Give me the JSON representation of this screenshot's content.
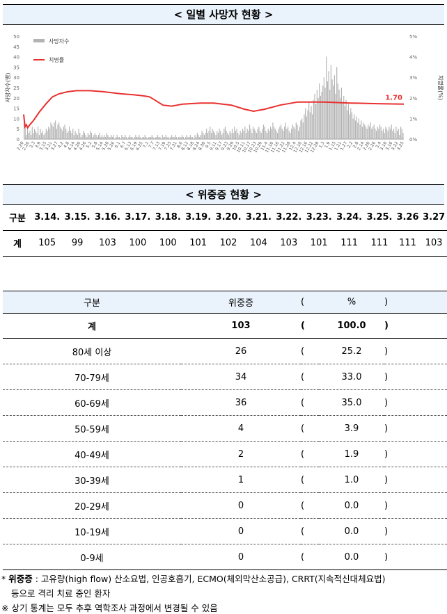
{
  "chart_section": {
    "title": "< 일별 사망자 현황 >"
  },
  "chart_data": {
    "type": "bar",
    "series": [
      {
        "name": "사망자수",
        "kind": "bar",
        "values": [
          10,
          6,
          2,
          5,
          3,
          4,
          2,
          6,
          3,
          5,
          4,
          3,
          6,
          2,
          5,
          3,
          4,
          2,
          3,
          5,
          4,
          6,
          5,
          8,
          7,
          6,
          8,
          9,
          5,
          7,
          8,
          6,
          5,
          4,
          6,
          7,
          5,
          3,
          4,
          6,
          4,
          3,
          5,
          2,
          4,
          3,
          2,
          5,
          3,
          1,
          2,
          4,
          3,
          2,
          1,
          3,
          2,
          4,
          3,
          1,
          2,
          3,
          2,
          1,
          2,
          3,
          1,
          2,
          1,
          2,
          1,
          3,
          2,
          1,
          1,
          2,
          1,
          2,
          0,
          1,
          2,
          1,
          1,
          0,
          2,
          1,
          1,
          2,
          1,
          0,
          1,
          2,
          1,
          1,
          0,
          1,
          2,
          1,
          1,
          2,
          1,
          0,
          1,
          1,
          2,
          1,
          0,
          1,
          1,
          1,
          2,
          1,
          0,
          1,
          1,
          2,
          1,
          1,
          0,
          2,
          1,
          1,
          2,
          1,
          1,
          0,
          1,
          2,
          1,
          1,
          2,
          1,
          0,
          1,
          1,
          1,
          2,
          1,
          0,
          1,
          2,
          1,
          1,
          2,
          1,
          1,
          0,
          2,
          1,
          3,
          2,
          1,
          2,
          4,
          3,
          2,
          3,
          5,
          3,
          4,
          6,
          3,
          5,
          4,
          3,
          2,
          4,
          3,
          5,
          4,
          2,
          3,
          5,
          6,
          4,
          3,
          2,
          4,
          3,
          5,
          3,
          6,
          4,
          5,
          3,
          2,
          4,
          3,
          5,
          4,
          6,
          3,
          5,
          4,
          7,
          5,
          3,
          6,
          5,
          4,
          3,
          5,
          6,
          4,
          3,
          5,
          7,
          6,
          4,
          3,
          5,
          4,
          6,
          5,
          8,
          6,
          5,
          4,
          3,
          5,
          6,
          7,
          5,
          4,
          6,
          8,
          5,
          6,
          4,
          3,
          5,
          7,
          6,
          5,
          8,
          7,
          4,
          6,
          9,
          10,
          8,
          12,
          15,
          11,
          14,
          18,
          13,
          16,
          12,
          19,
          22,
          17,
          24,
          20,
          27,
          21,
          23,
          26,
          30,
          25,
          40,
          28,
          33,
          24,
          36,
          29,
          26,
          31,
          22,
          35,
          27,
          24,
          20,
          25,
          18,
          21,
          16,
          19,
          14,
          17,
          12,
          15,
          13,
          10,
          12,
          9,
          11,
          8,
          10,
          7,
          9,
          6,
          8,
          7,
          6,
          5,
          7,
          6,
          8,
          5,
          6,
          7,
          5,
          4,
          6,
          5,
          7,
          6,
          4,
          5,
          3,
          6,
          5,
          4,
          6,
          5,
          7,
          4,
          5,
          3,
          6,
          4,
          5,
          2,
          6,
          5,
          3
        ]
      },
      {
        "name": "치명률",
        "kind": "line",
        "axis": "right",
        "points": [
          [
            0,
            1.2
          ],
          [
            3,
            0.6
          ],
          [
            6,
            0.7
          ],
          [
            9,
            0.55
          ],
          [
            14,
            0.7
          ],
          [
            22,
            0.9
          ],
          [
            35,
            1.3
          ],
          [
            50,
            1.7
          ],
          [
            65,
            2.05
          ],
          [
            80,
            2.2
          ],
          [
            100,
            2.3
          ],
          [
            120,
            2.35
          ],
          [
            150,
            2.35
          ],
          [
            180,
            2.3
          ],
          [
            220,
            2.2
          ],
          [
            250,
            2.15
          ],
          [
            270,
            2.1
          ],
          [
            285,
            2.05
          ],
          [
            300,
            1.85
          ],
          [
            315,
            1.65
          ],
          [
            335,
            1.6
          ],
          [
            360,
            1.7
          ],
          [
            400,
            1.75
          ],
          [
            430,
            1.75
          ],
          [
            470,
            1.65
          ],
          [
            500,
            1.45
          ],
          [
            520,
            1.35
          ],
          [
            545,
            1.45
          ],
          [
            580,
            1.65
          ],
          [
            620,
            1.8
          ],
          [
            680,
            1.8
          ],
          [
            740,
            1.75
          ],
          [
            800,
            1.72
          ],
          [
            860,
            1.7
          ]
        ]
      }
    ],
    "x_ticks": [
      "2.20",
      "2.26",
      "3.3",
      "3.9",
      "3.15",
      "3.21",
      "3.27",
      "4.2",
      "4.8",
      "4.14",
      "4.20",
      "4.26",
      "5.2",
      "5.8",
      "5.14",
      "5.20",
      "5.26",
      "6.1",
      "6.7",
      "6.13",
      "6.19",
      "6.25",
      "7.1",
      "7.7",
      "7.13",
      "7.19",
      "7.25",
      "7.31",
      "8.6",
      "8.12",
      "8.18",
      "8.24",
      "8.30",
      "9.5",
      "9.11",
      "9.17",
      "9.23",
      "9.29",
      "10.5",
      "10.11",
      "10.17",
      "10.23",
      "10.29",
      "11.4",
      "11.10",
      "11.16",
      "11.22",
      "11.28",
      "12.4",
      "12.10",
      "12.16",
      "12.22",
      "12.28",
      "1.3",
      "1.9",
      "1.15",
      "1.21",
      "1.27",
      "2.2",
      "2.8",
      "2.14",
      "2.20",
      "2.26",
      "3.4",
      "3.10",
      "3.16",
      "3.22",
      "3.25"
    ],
    "y_left_ticks": [
      "0",
      "5",
      "10",
      "15",
      "20",
      "25",
      "30",
      "35",
      "40",
      "45",
      "50"
    ],
    "y_right_ticks": [
      "0%",
      "1%",
      "2%",
      "3%",
      "4%",
      "5%"
    ],
    "ylim_left": [
      0,
      50
    ],
    "ylim_right": [
      0,
      5
    ],
    "y_left_label": "사망자수(명)",
    "y_right_label": "치명률(%)",
    "end_label": "1.70",
    "legend": [
      {
        "name": "사망자수",
        "color": "#b3b3b3"
      },
      {
        "name": "치명률",
        "color": "#e8302e"
      }
    ],
    "legend_position": "top-left"
  },
  "daily_section": {
    "title": "< 위중증 현황 >",
    "row_header": "구분",
    "row_label": "계",
    "dates": [
      "3.14.",
      "3.15.",
      "3.16.",
      "3.17.",
      "3.18.",
      "3.19.",
      "3.20.",
      "3.21.",
      "3.22.",
      "3.23.",
      "3.24.",
      "3.25.",
      "3.26",
      "3.27"
    ],
    "values": [
      "105",
      "99",
      "103",
      "100",
      "100",
      "101",
      "102",
      "104",
      "103",
      "101",
      "111",
      "111",
      "111",
      "103"
    ]
  },
  "age_table": {
    "headers": {
      "group": "구분",
      "count": "위중증",
      "lp": "(",
      "pct": "%",
      "rp": ")"
    },
    "total": {
      "group": "계",
      "count": "103",
      "pct": "100.0"
    },
    "rows": [
      {
        "group": "80세 이상",
        "count": "26",
        "pct": "25.2"
      },
      {
        "group": "70-79세",
        "count": "34",
        "pct": "33.0"
      },
      {
        "group": "60-69세",
        "count": "36",
        "pct": "35.0"
      },
      {
        "group": "50-59세",
        "count": "4",
        "pct": "3.9"
      },
      {
        "group": "40-49세",
        "count": "2",
        "pct": "1.9"
      },
      {
        "group": "30-39세",
        "count": "1",
        "pct": "1.0"
      },
      {
        "group": "20-29세",
        "count": "0",
        "pct": "0.0"
      },
      {
        "group": "10-19세",
        "count": "0",
        "pct": "0.0"
      },
      {
        "group": "0-9세",
        "count": "0",
        "pct": "0.0"
      }
    ],
    "lp": "(",
    "rp": ")"
  },
  "notes": {
    "n1_prefix": "* ",
    "n1_bold": "위중증",
    "n1_text": " : 고유량(high flow) 산소요법, 인공호흡기, ECMO(체외막산소공급), CRRT(지속적신대체요법)",
    "n2_text": "등으로 격리 치료 중인 환자",
    "n3_text": "※ 상기 통계는 모두 추후 역학조사 과정에서 변경될 수 있음"
  },
  "colors": {
    "header_bg": "#eaf3fb",
    "bar": "#b3b3b3",
    "line": "#e8302e"
  }
}
